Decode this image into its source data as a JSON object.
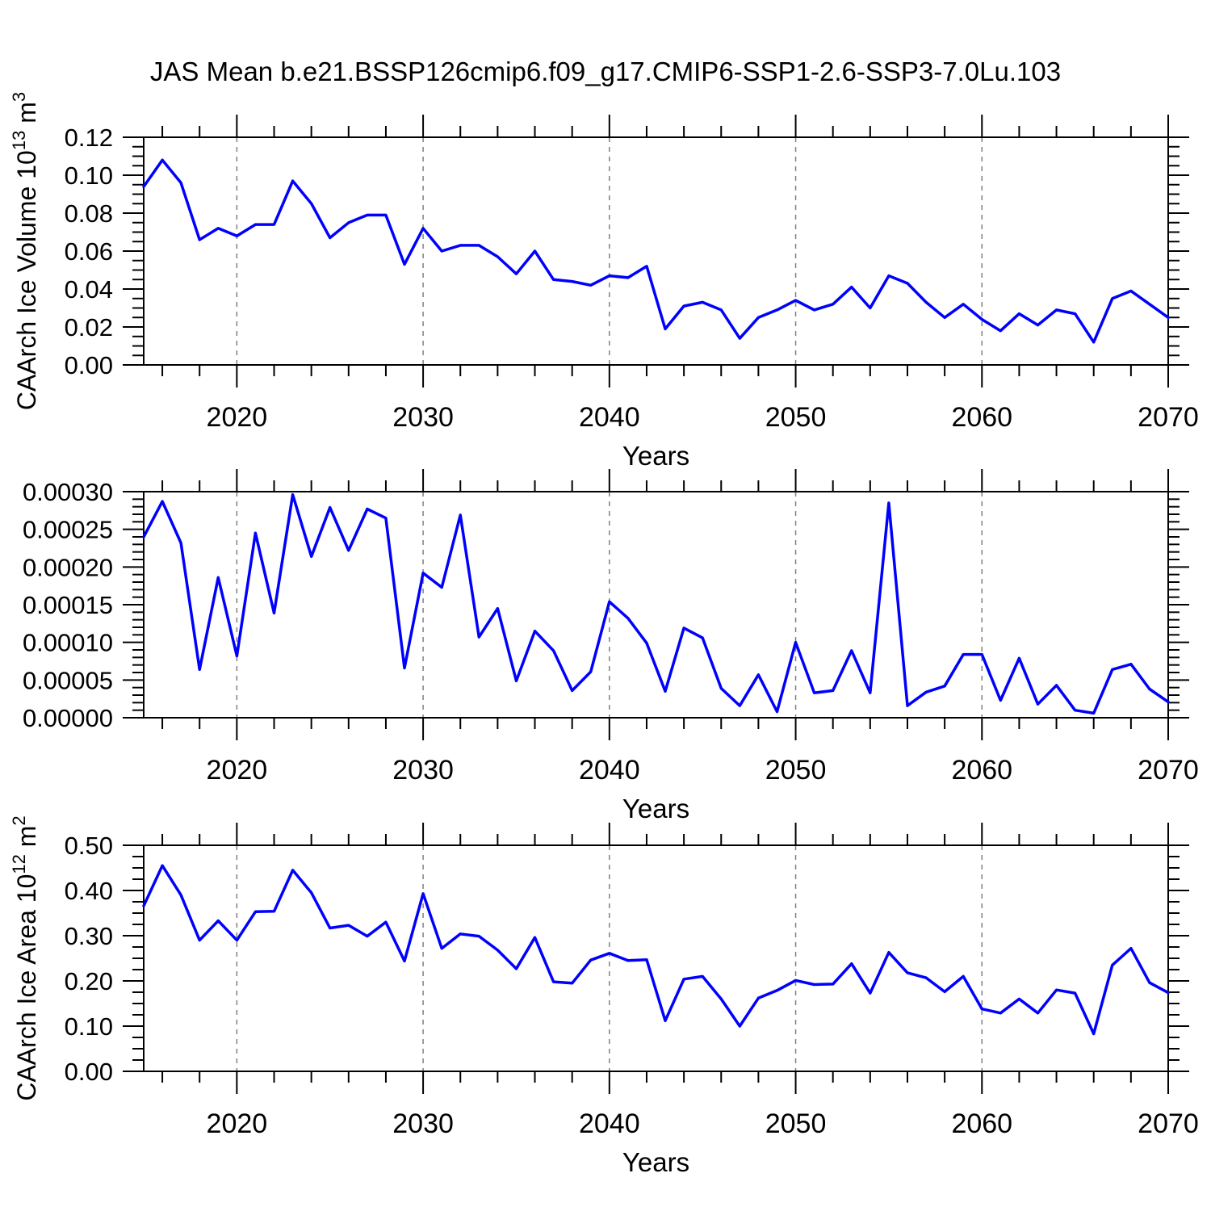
{
  "chart_data": {
    "type": "line",
    "title": "JAS Mean b.e21.BSSP126cmip6.f09_g17.CMIP6-SSP1-2.6-SSP3-7.0Lu.103",
    "xlabel": "Years",
    "xlim": [
      2015,
      2070
    ],
    "x_tick_labels": [
      "2020",
      "2030",
      "2040",
      "2050",
      "2060",
      "2070"
    ],
    "x_major_ticks": [
      2020,
      2030,
      2040,
      2050,
      2060,
      2070
    ],
    "x_minor_step": 2,
    "grid_decades": [
      2020,
      2030,
      2040,
      2050,
      2060
    ],
    "line_color": "#0000ff",
    "axis_color": "#000000",
    "grid_color": "#808080",
    "years": [
      2015,
      2016,
      2017,
      2018,
      2019,
      2020,
      2021,
      2022,
      2023,
      2024,
      2025,
      2026,
      2027,
      2028,
      2029,
      2030,
      2031,
      2032,
      2033,
      2034,
      2035,
      2036,
      2037,
      2038,
      2039,
      2040,
      2041,
      2042,
      2043,
      2044,
      2045,
      2046,
      2047,
      2048,
      2049,
      2050,
      2051,
      2052,
      2053,
      2054,
      2055,
      2056,
      2057,
      2058,
      2059,
      2060,
      2061,
      2062,
      2063,
      2064,
      2065,
      2066,
      2067,
      2068,
      2069,
      2070
    ],
    "panels": [
      {
        "name": "ice-volume",
        "ylabel_plain": "CAArch Ice Volume 10^13 m^3",
        "ylabel_parts": [
          {
            "text": "CAArch Ice Volume 10",
            "sup": false
          },
          {
            "text": "13",
            "sup": true
          },
          {
            "text": " m",
            "sup": false
          },
          {
            "text": "3",
            "sup": true
          }
        ],
        "ylim": [
          0,
          0.12
        ],
        "ytick_values": [
          0.0,
          0.02,
          0.04,
          0.06,
          0.08,
          0.1,
          0.12
        ],
        "ytick_labels": [
          "0.00",
          "0.02",
          "0.04",
          "0.06",
          "0.08",
          "0.10",
          "0.12"
        ],
        "yminor_step": 0.005,
        "values": [
          0.094,
          0.108,
          0.096,
          0.066,
          0.072,
          0.068,
          0.074,
          0.074,
          0.097,
          0.085,
          0.067,
          0.075,
          0.079,
          0.079,
          0.053,
          0.072,
          0.06,
          0.063,
          0.063,
          0.057,
          0.048,
          0.06,
          0.045,
          0.044,
          0.042,
          0.047,
          0.046,
          0.052,
          0.019,
          0.031,
          0.033,
          0.029,
          0.014,
          0.025,
          0.029,
          0.034,
          0.029,
          0.032,
          0.041,
          0.03,
          0.047,
          0.043,
          0.033,
          0.025,
          0.032,
          0.024,
          0.018,
          0.027,
          0.021,
          0.029,
          0.027,
          0.012,
          0.035,
          0.039,
          0.032,
          0.025
        ]
      },
      {
        "name": "middle-series",
        "ylabel_plain": null,
        "ylabel_parts": null,
        "ylim": [
          0,
          0.0003
        ],
        "ytick_values": [
          0.0,
          5e-05,
          0.0001,
          0.00015,
          0.0002,
          0.00025,
          0.0003
        ],
        "ytick_labels": [
          "0.00000",
          "0.00005",
          "0.00010",
          "0.00015",
          "0.00020",
          "0.00025",
          "0.00030"
        ],
        "yminor_step": 1e-05,
        "values": [
          0.00024,
          0.000287,
          0.000232,
          6.4e-05,
          0.000186,
          8.2e-05,
          0.000245,
          0.000139,
          0.000296,
          0.000214,
          0.000279,
          0.000222,
          0.000277,
          0.000265,
          6.6e-05,
          0.000192,
          0.000173,
          0.000269,
          0.000107,
          0.000145,
          4.9e-05,
          0.000115,
          8.9e-05,
          3.6e-05,
          6.1e-05,
          0.000154,
          0.000132,
          9.9e-05,
          3.5e-05,
          0.000119,
          0.000106,
          3.9e-05,
          1.6e-05,
          5.7e-05,
          8e-06,
          0.0001,
          3.3e-05,
          3.6e-05,
          8.9e-05,
          3.3e-05,
          0.000285,
          1.6e-05,
          3.4e-05,
          4.2e-05,
          8.4e-05,
          8.4e-05,
          2.3e-05,
          7.9e-05,
          1.8e-05,
          4.3e-05,
          1e-05,
          6e-06,
          6.4e-05,
          7.1e-05,
          3.8e-05,
          2.1e-05
        ]
      },
      {
        "name": "ice-area",
        "ylabel_plain": "CAArch Ice Area 10^12 m^2",
        "ylabel_parts": [
          {
            "text": "CAArch Ice Area 10",
            "sup": false
          },
          {
            "text": "12",
            "sup": true
          },
          {
            "text": " m",
            "sup": false
          },
          {
            "text": "2",
            "sup": true
          }
        ],
        "ylim": [
          0,
          0.5
        ],
        "ytick_values": [
          0.0,
          0.1,
          0.2,
          0.3,
          0.4,
          0.5
        ],
        "ytick_labels": [
          "0.00",
          "0.10",
          "0.20",
          "0.30",
          "0.40",
          "0.50"
        ],
        "yminor_step": 0.025,
        "values": [
          0.366,
          0.455,
          0.39,
          0.29,
          0.333,
          0.29,
          0.353,
          0.354,
          0.445,
          0.395,
          0.317,
          0.323,
          0.299,
          0.33,
          0.244,
          0.393,
          0.272,
          0.304,
          0.299,
          0.268,
          0.227,
          0.296,
          0.198,
          0.195,
          0.246,
          0.261,
          0.245,
          0.247,
          0.112,
          0.204,
          0.21,
          0.16,
          0.1,
          0.162,
          0.179,
          0.201,
          0.192,
          0.193,
          0.238,
          0.173,
          0.263,
          0.218,
          0.207,
          0.176,
          0.21,
          0.138,
          0.129,
          0.16,
          0.129,
          0.18,
          0.173,
          0.083,
          0.235,
          0.272,
          0.196,
          0.174
        ]
      }
    ]
  }
}
